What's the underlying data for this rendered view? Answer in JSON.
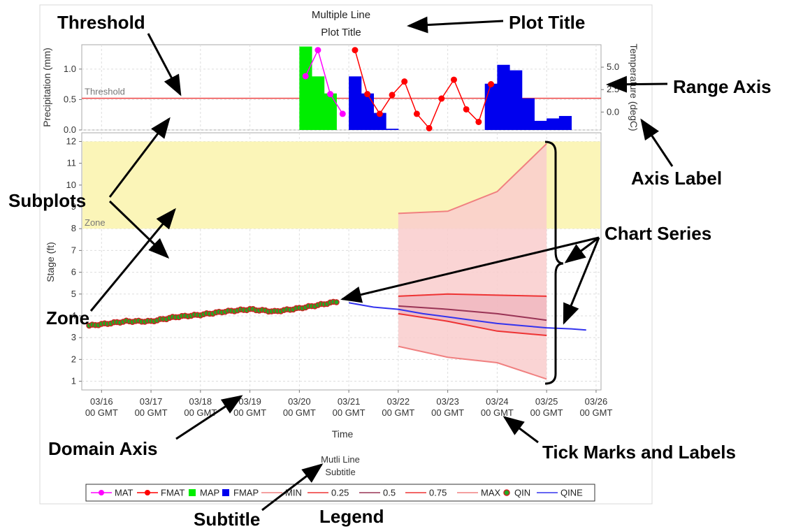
{
  "plot_title": [
    "Multiple Line",
    "Plot Title"
  ],
  "subtitle": [
    "Mutli Line",
    "Subtitle"
  ],
  "annotations": {
    "threshold": "Threshold",
    "plot_title": "Plot Title",
    "range_axis": "Range Axis",
    "axis_label": "Axis Label",
    "subplots": "Subplots",
    "chart_series": "Chart Series",
    "zone": "Zone",
    "domain_axis": "Domain Axis",
    "tick_marks": "Tick Marks and Labels",
    "subtitle": "Subtitle",
    "legend": "Legend"
  },
  "colors": {
    "MAT": "#ff00ff",
    "FMAT": "#ff0000",
    "MAP": "#00ee00",
    "FMAP": "#0000ee",
    "MIN": "#f08080",
    "q25": "#ee3333",
    "q50": "#993355",
    "q75": "#ee3333",
    "MAX": "#f08080",
    "QIN_fill": "#22aa22",
    "QIN_edge": "#cc2222",
    "QINE": "#3333ee",
    "zone_fill": "#fbf5b8",
    "range_fill": "#f9cccc",
    "threshold": "#ee4444"
  },
  "chart_data": [
    {
      "type": "bar",
      "subplot": "precipitation",
      "ylabel": "Precipitation (mm)",
      "y2label": "Temperature (degC)",
      "ylim": [
        0,
        1.4
      ],
      "yticks": [
        "0.0",
        "0.5",
        "1.0"
      ],
      "y2lim": [
        -2.0,
        7.5
      ],
      "y2ticks": [
        "0.0",
        "2.5",
        "5.0"
      ],
      "threshold": {
        "label": "Threshold",
        "value": 0.52
      },
      "series": [
        {
          "name": "MAP",
          "kind": "bar",
          "x": [
            20.0,
            20.25,
            20.5
          ],
          "values": [
            1.37,
            0.88,
            0.6
          ]
        },
        {
          "name": "FMAP",
          "kind": "bar",
          "x": [
            21.0,
            21.25,
            21.5,
            21.75,
            23.75,
            24.0,
            24.25,
            24.5,
            24.75,
            25.0,
            25.25
          ],
          "values": [
            0.88,
            0.6,
            0.28,
            0.02,
            0.76,
            1.07,
            0.98,
            0.52,
            0.15,
            0.19,
            0.23
          ]
        },
        {
          "name": "MAT",
          "kind": "line",
          "axis": "right",
          "x": [
            20.0,
            20.25,
            20.5,
            20.75
          ],
          "values": [
            4.0,
            6.9,
            2.0,
            -0.2
          ]
        },
        {
          "name": "FMAT",
          "kind": "line",
          "axis": "right",
          "x": [
            21.0,
            21.25,
            21.5,
            21.75,
            22.0,
            22.25,
            22.5,
            22.75,
            23.0,
            23.25,
            23.5,
            23.75
          ],
          "values": [
            6.9,
            2.0,
            -0.2,
            1.9,
            3.4,
            -0.2,
            -1.8,
            1.5,
            3.6,
            0.3,
            -1.1,
            3.1
          ]
        }
      ]
    },
    {
      "type": "line",
      "subplot": "stage",
      "ylabel": "Stage (ft)",
      "xlabel": "Time",
      "ylim": [
        0.6,
        12.4
      ],
      "yticks": [
        "1",
        "2",
        "3",
        "4",
        "5",
        "6",
        "7",
        "8",
        "9",
        "10",
        "11",
        "12"
      ],
      "xlim": [
        15.6,
        26.1
      ],
      "xticks": [
        [
          "03/16",
          "00 GMT"
        ],
        [
          "03/17",
          "00 GMT"
        ],
        [
          "03/18",
          "00 GMT"
        ],
        [
          "03/19",
          "00 GMT"
        ],
        [
          "03/20",
          "00 GMT"
        ],
        [
          "03/21",
          "00 GMT"
        ],
        [
          "03/22",
          "00 GMT"
        ],
        [
          "03/23",
          "00 GMT"
        ],
        [
          "03/24",
          "00 GMT"
        ],
        [
          "03/25",
          "00 GMT"
        ],
        [
          "03/26",
          "00 GMT"
        ]
      ],
      "zone": {
        "label": "Zone",
        "from": 8.0,
        "to": 12.0
      },
      "series": [
        {
          "name": "MIN",
          "x": [
            22.0,
            23.0,
            24.0,
            25.0
          ],
          "values": [
            2.6,
            2.1,
            1.85,
            1.1
          ]
        },
        {
          "name": "0.25",
          "x": [
            22.0,
            23.0,
            24.0,
            25.0
          ],
          "values": [
            4.1,
            3.75,
            3.3,
            3.1
          ]
        },
        {
          "name": "0.5",
          "x": [
            22.0,
            23.0,
            24.0,
            25.0
          ],
          "values": [
            4.45,
            4.3,
            4.1,
            3.8
          ]
        },
        {
          "name": "0.75",
          "x": [
            22.0,
            23.0,
            24.0,
            25.0
          ],
          "values": [
            4.9,
            5.0,
            4.95,
            4.9
          ]
        },
        {
          "name": "MAX",
          "x": [
            22.0,
            23.0,
            24.0,
            25.0
          ],
          "values": [
            8.7,
            8.8,
            9.7,
            11.9
          ]
        },
        {
          "name": "QIN",
          "x_start": 15.75,
          "x_end": 20.75,
          "knots": [
            [
              15.75,
              3.55
            ],
            [
              16.5,
              3.75
            ],
            [
              17.0,
              3.75
            ],
            [
              17.5,
              3.95
            ],
            [
              18.0,
              4.05
            ],
            [
              18.5,
              4.2
            ],
            [
              19.0,
              4.3
            ],
            [
              19.5,
              4.2
            ],
            [
              20.0,
              4.35
            ],
            [
              20.4,
              4.5
            ],
            [
              20.75,
              4.65
            ]
          ]
        },
        {
          "name": "QINE",
          "x": [
            21.0,
            21.5,
            22.0,
            22.5,
            23.0,
            23.5,
            24.0,
            24.5,
            25.0,
            25.5,
            25.8
          ],
          "values": [
            4.6,
            4.4,
            4.3,
            4.1,
            3.95,
            3.8,
            3.65,
            3.55,
            3.45,
            3.4,
            3.35
          ]
        }
      ]
    }
  ],
  "legend": [
    {
      "name": "MAT",
      "symbol": "line-dot",
      "color": "#ff00ff"
    },
    {
      "name": "FMAT",
      "symbol": "line-dot",
      "color": "#ff0000"
    },
    {
      "name": "MAP",
      "symbol": "square",
      "color": "#00ee00"
    },
    {
      "name": "FMAP",
      "symbol": "square",
      "color": "#0000ee"
    },
    {
      "name": "MIN",
      "symbol": "line",
      "color": "#f08080"
    },
    {
      "name": "0.25",
      "symbol": "line",
      "color": "#ee3333"
    },
    {
      "name": "0.5",
      "symbol": "line",
      "color": "#993355"
    },
    {
      "name": "0.75",
      "symbol": "line",
      "color": "#ee3333"
    },
    {
      "name": "MAX",
      "symbol": "line",
      "color": "#f08080"
    },
    {
      "name": "QIN",
      "symbol": "dot",
      "color": "#22aa22"
    },
    {
      "name": "QINE",
      "symbol": "line",
      "color": "#3333ee"
    }
  ]
}
